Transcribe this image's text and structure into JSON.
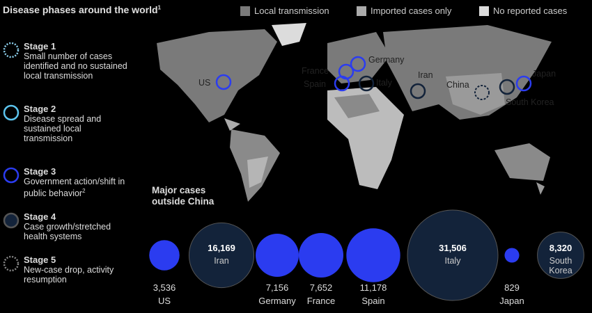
{
  "header": {
    "title": "Disease phases around the world",
    "title_note": "1"
  },
  "legend": [
    {
      "label": "Local transmission",
      "color": "#7a7a7a"
    },
    {
      "label": "Imported cases only",
      "color": "#ababab"
    },
    {
      "label": "No reported cases",
      "color": "#dcdcdc"
    }
  ],
  "stages": [
    {
      "name": "Stage 1",
      "description": "Small number of cases identified and no sustained local transmission"
    },
    {
      "name": "Stage 2",
      "description": "Disease spread and sustained local transmission"
    },
    {
      "name": "Stage 3",
      "description": "Government action/shift in public behavior",
      "note": "2"
    },
    {
      "name": "Stage 4",
      "description": "Case growth/stretched health systems"
    },
    {
      "name": "Stage 5",
      "description": "New-case drop, activity resumption"
    }
  ],
  "map_labels": [
    "US",
    "France",
    "Spain",
    "Germany",
    "Italy",
    "Iran",
    "China",
    "Japan",
    "South Korea"
  ],
  "chart_data": {
    "type": "bubble",
    "title": "Major cases outside China",
    "categories": [
      "US",
      "Iran",
      "Germany",
      "France",
      "Spain",
      "Italy",
      "Japan",
      "South Korea"
    ],
    "values": [
      3536,
      16169,
      7156,
      7652,
      11178,
      31506,
      829,
      8320
    ],
    "value_labels": [
      "3,536",
      "16,169",
      "7,156",
      "7,652",
      "11,178",
      "31,506",
      "829",
      "8,320"
    ],
    "colors": [
      "#2b3cf0",
      "#13233a",
      "#2b3cf0",
      "#2b3cf0",
      "#2b3cf0",
      "#13233a",
      "#2b3cf0",
      "#13233a"
    ]
  }
}
